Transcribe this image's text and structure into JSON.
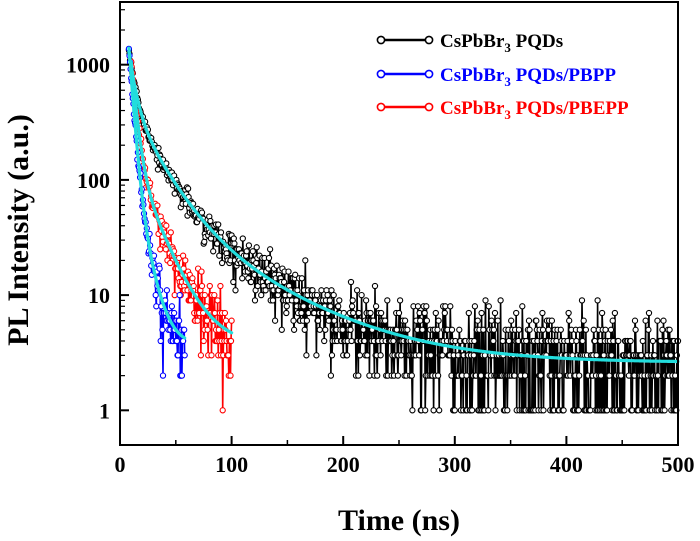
{
  "chart_data": {
    "type": "scatter",
    "title": "",
    "xlabel": "Time (ns)",
    "ylabel": "PL Intensity (a.u.)",
    "xlim": [
      0,
      500
    ],
    "ylim": [
      0.5,
      3500
    ],
    "yscale": "log",
    "xticks": [
      "0",
      "100",
      "200",
      "300",
      "400",
      "500"
    ],
    "yticks": [
      "1",
      "10",
      "100",
      "1000"
    ],
    "legend_position": "top-right",
    "series": [
      {
        "name": "CsPbBr3 PQDs",
        "label_main": "CsPbBr",
        "label_sub": "3",
        "label_rest": " PQDs",
        "color": "#000000",
        "t_start": 8,
        "t_end": 500,
        "peak": 1350,
        "noise_floor": 1,
        "fit": {
          "A1": 850,
          "tau1": 5,
          "A2": 380,
          "tau2": 22,
          "A3": 60,
          "tau3": 70,
          "offset": 2.6
        }
      },
      {
        "name": "CsPbBr3 PQDs/PBPP",
        "label_main": "CsPbBr",
        "label_sub": "3",
        "label_rest": " PQDs/PBPP",
        "color": "#0000ff",
        "t_start": 8,
        "t_end": 58,
        "peak": 1400,
        "noise_floor": 1,
        "fit": {
          "A1": 1250,
          "tau1": 3.2,
          "A2": 140,
          "tau2": 9,
          "A3": 0,
          "tau3": 1,
          "offset": 3.7
        }
      },
      {
        "name": "CsPbBr3 PQDs/PBEPP",
        "label_main": "CsPbBr",
        "label_sub": "3",
        "label_rest": " PQDs/PBEPP",
        "color": "#ff0000",
        "t_start": 10,
        "t_end": 100,
        "peak": 1050,
        "noise_floor": 1,
        "fit": {
          "A1": 900,
          "tau1": 4,
          "A2": 150,
          "tau2": 18,
          "A3": 0,
          "tau3": 1,
          "offset": 3.7
        }
      }
    ],
    "fit_line_color": "#22dddd"
  }
}
